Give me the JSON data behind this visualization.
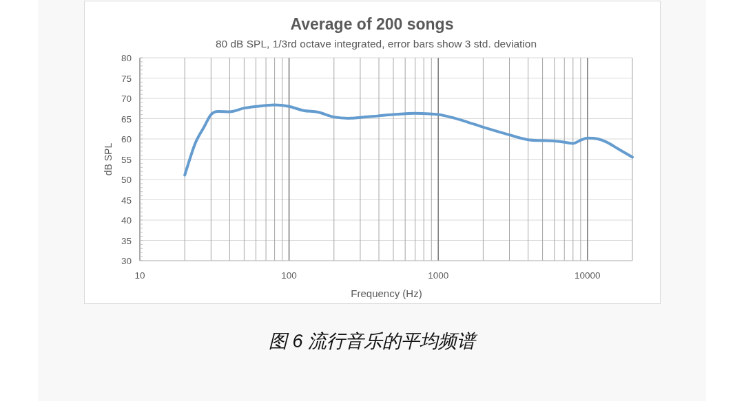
{
  "chart_data": {
    "type": "line",
    "title": "Average of 200 songs",
    "subtitle": "80 dB SPL, 1/3rd octave integrated, error bars show 3 std. deviation",
    "xlabel": "Frequency (Hz)",
    "ylabel": "dB SPL",
    "annotations": [
      "图 6 流行音乐的平均频谱"
    ],
    "x": [
      20,
      23.5,
      27,
      30,
      33.5,
      40,
      50,
      60,
      80,
      100,
      125,
      156,
      200,
      250,
      300,
      400,
      500,
      700,
      870,
      1000,
      1200,
      1500,
      2000,
      3000,
      4000,
      5000,
      6000,
      7000,
      8000,
      9000,
      10000,
      11750,
      13300,
      16000,
      20000
    ],
    "series": [
      {
        "color": "#659ccf",
        "values": [
          51.1,
          58.9,
          63.0,
          66.0,
          66.8,
          66.7,
          67.6,
          68.0,
          68.4,
          68.0,
          67.0,
          66.6,
          65.4,
          65.1,
          65.3,
          65.7,
          66.0,
          66.3,
          66.2,
          66.0,
          65.4,
          64.4,
          62.9,
          61.0,
          59.8,
          59.6,
          59.5,
          59.2,
          58.9,
          59.7,
          60.2,
          60.0,
          59.3,
          57.6,
          55.5
        ]
      }
    ],
    "xlim": [
      10,
      20000
    ],
    "ylim": [
      30,
      80
    ],
    "xticks": [
      10,
      {
        "value": 20,
        "label": null
      },
      {
        "value": 30,
        "label": null
      },
      {
        "value": 40,
        "label": null
      },
      {
        "value": 50,
        "label": null
      },
      {
        "value": 60,
        "label": null
      },
      {
        "value": 70,
        "label": null
      },
      {
        "value": 80,
        "label": null
      },
      {
        "value": 90,
        "label": null
      },
      100,
      {
        "value": 200,
        "label": null
      },
      {
        "value": 300,
        "label": null
      },
      {
        "value": 400,
        "label": null
      },
      {
        "value": 500,
        "label": null
      },
      {
        "value": 600,
        "label": null
      },
      {
        "value": 700,
        "label": null
      },
      {
        "value": 800,
        "label": null
      },
      {
        "value": 900,
        "label": null
      },
      1000,
      {
        "value": 2000,
        "label": null
      },
      {
        "value": 3000,
        "label": null
      },
      {
        "value": 4000,
        "label": null
      },
      {
        "value": 5000,
        "label": null
      },
      {
        "value": 6000,
        "label": null
      },
      {
        "value": 7000,
        "label": null
      },
      {
        "value": 8000,
        "label": null
      },
      {
        "value": 9000,
        "label": null
      },
      10000,
      {
        "value": 20000,
        "label": null
      }
    ],
    "yticks": [
      30,
      35,
      40,
      45,
      50,
      55,
      60,
      65,
      70,
      75,
      80
    ],
    "log": "x",
    "grid": true,
    "line_style": "solid"
  }
}
